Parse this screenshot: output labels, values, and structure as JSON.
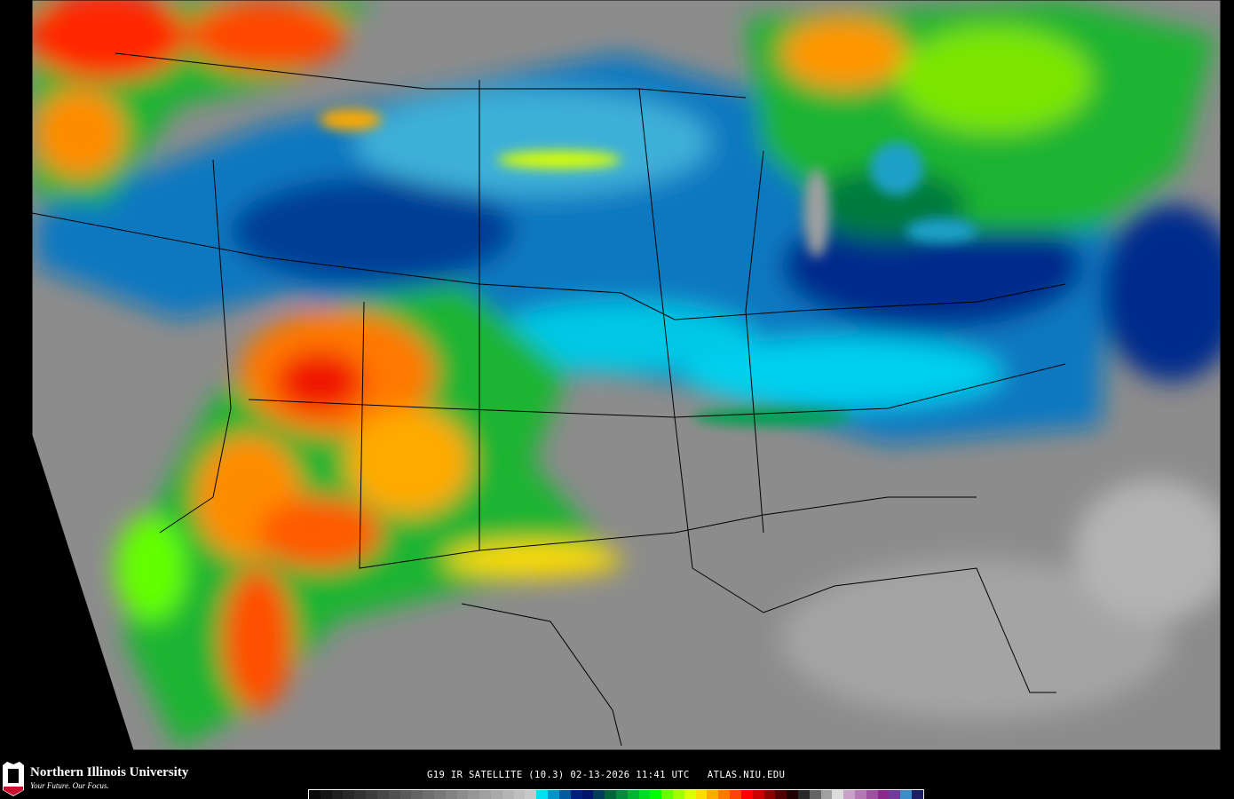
{
  "header": {
    "caption": "G19 IR SATELLITE (10.3) 02-13-2026 11:41 UTC   ATLAS.NIU.EDU"
  },
  "branding": {
    "university": "Northern Illinois University",
    "tagline": "Your Future. Our Focus.",
    "logo_text": "NIU"
  },
  "colorbar": {
    "colors": [
      "#0a0a0a",
      "#141414",
      "#1e1e1e",
      "#282828",
      "#323232",
      "#3c3c3c",
      "#464646",
      "#505050",
      "#5a5a5a",
      "#646464",
      "#6e6e6e",
      "#787878",
      "#828282",
      "#8c8c8c",
      "#969696",
      "#a0a0a0",
      "#aaaaaa",
      "#b4b4b4",
      "#bebebe",
      "#c8c8c8",
      "#00e0f0",
      "#0094c8",
      "#005aa0",
      "#001e82",
      "#00146e",
      "#003c5a",
      "#006438",
      "#008c3c",
      "#00b432",
      "#00dc1e",
      "#00ff00",
      "#64ff00",
      "#a0ff00",
      "#dcff00",
      "#ffdc00",
      "#ffaa00",
      "#ff7800",
      "#ff4600",
      "#ff0000",
      "#c80000",
      "#8c0000",
      "#500000",
      "#1e0000",
      "#282828",
      "#646464",
      "#a0a0a0",
      "#dcdcdc",
      "#c8a0c8",
      "#b478b4",
      "#a050a0",
      "#8c288c",
      "#6e3c9c",
      "#3c8cc8",
      "#1e1e64"
    ]
  },
  "map": {
    "colors": {
      "background": "#8c8c8c",
      "cold_blue": "#0064b4",
      "cyan": "#00d8f0",
      "deep_blue": "#002a8c",
      "green": "#1eb432",
      "yellow": "#e6f000",
      "orange": "#ff8c00",
      "red": "#f01400"
    }
  }
}
